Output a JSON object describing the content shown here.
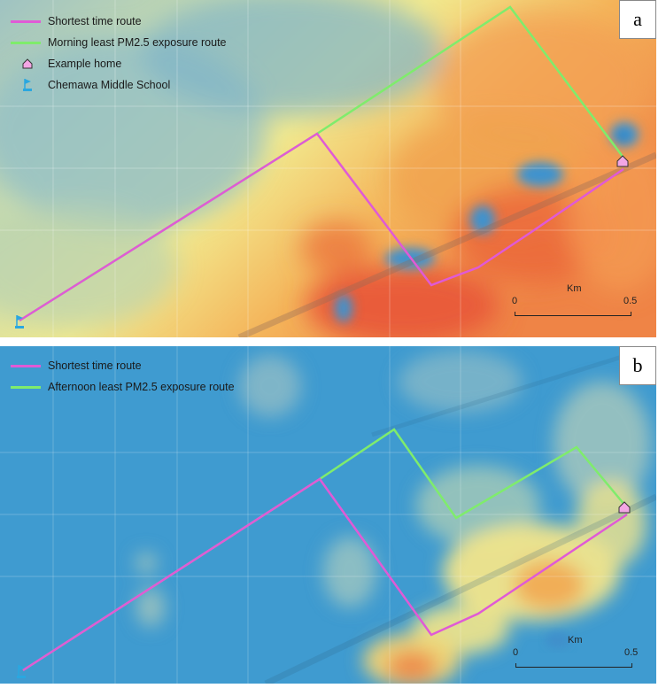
{
  "panel_a": {
    "label": "a",
    "legend": [
      {
        "text": "Shortest time route",
        "color": "#e05ad6",
        "symbol": "line"
      },
      {
        "text": "Morning least PM2.5 exposure route",
        "color": "#7fec6c",
        "symbol": "line"
      },
      {
        "text": "Example home",
        "color": "#f3a6e4",
        "symbol": "home-icon"
      },
      {
        "text": "Chemawa Middle School",
        "color": "#2aa7e0",
        "symbol": "school-flag-icon"
      }
    ],
    "scale": {
      "unit": "Km",
      "start": "0",
      "end": "0.5"
    }
  },
  "panel_b": {
    "label": "b",
    "legend": [
      {
        "text": "Shortest time route",
        "color": "#e05ad6",
        "symbol": "line"
      },
      {
        "text": "Afternoon least PM2.5 exposure route",
        "color": "#7fec6c",
        "symbol": "line"
      }
    ],
    "scale": {
      "unit": "Km",
      "start": "0",
      "end": "0.5"
    }
  },
  "colors": {
    "low_pm": "#3f9bd0",
    "mid_pm": "#f1e98a",
    "high_pm": "#ee6a3c",
    "shortest_route": "#e05ad6",
    "least_exposure_route": "#7fec6c"
  }
}
